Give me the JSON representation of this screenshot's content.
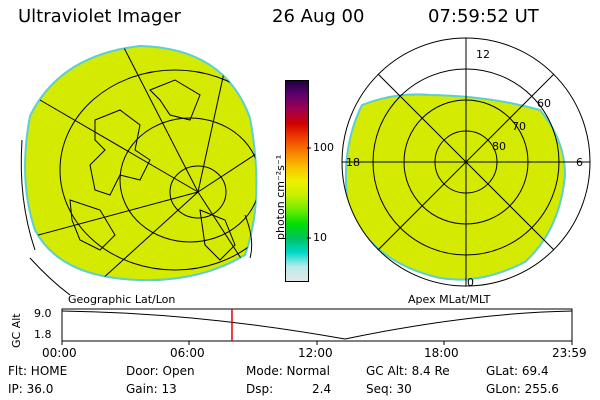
{
  "header": {
    "instrument": "Ultraviolet Imager",
    "date": "26 Aug 00",
    "time": "07:59:52 UT"
  },
  "colorbar": {
    "label": "photon cm⁻²s⁻¹",
    "ticks": [
      "100",
      "10"
    ],
    "colors": [
      "#e6e6e6",
      "#b8ecec",
      "#00d8c8",
      "#00c060",
      "#00e000",
      "#70ec00",
      "#c8f000",
      "#f0f000",
      "#f8c000",
      "#f88000",
      "#f04000",
      "#d00000",
      "#a00050",
      "#600070",
      "#200040"
    ]
  },
  "left_map": {
    "caption": "Geographic Lat/Lon",
    "fill_color": "#d8ec00"
  },
  "right_map": {
    "caption": "Apex MLat/MLT",
    "labels": {
      "mlt_12": "12",
      "mlt_18": "18",
      "mlt_6": "6",
      "mlt_0": "0",
      "lat_60": "60",
      "lat_70": "70",
      "lat_80": "80"
    },
    "fill_color": "#d8ec00"
  },
  "timeline": {
    "axis_label": "GC Alt",
    "y_max": "9.0",
    "y_min": "1.8",
    "times": [
      "00:00",
      "06:00",
      "12:00",
      "18:00",
      "23:59"
    ],
    "marker_time_fraction": 0.3333,
    "marker_color": "#e00000"
  },
  "status": {
    "flt": "Flt: HOME",
    "ip": "IP: 36.0",
    "door": "Door: Open",
    "gain": "Gain: 13",
    "mode": "Mode: Normal",
    "dsp_label": "Dsp:",
    "dsp_value": "2.4",
    "gc_alt": "GC Alt: 8.4 Re",
    "seq": "Seq: 30",
    "glat": "GLat: 69.4",
    "glon": "GLon: 255.6"
  }
}
